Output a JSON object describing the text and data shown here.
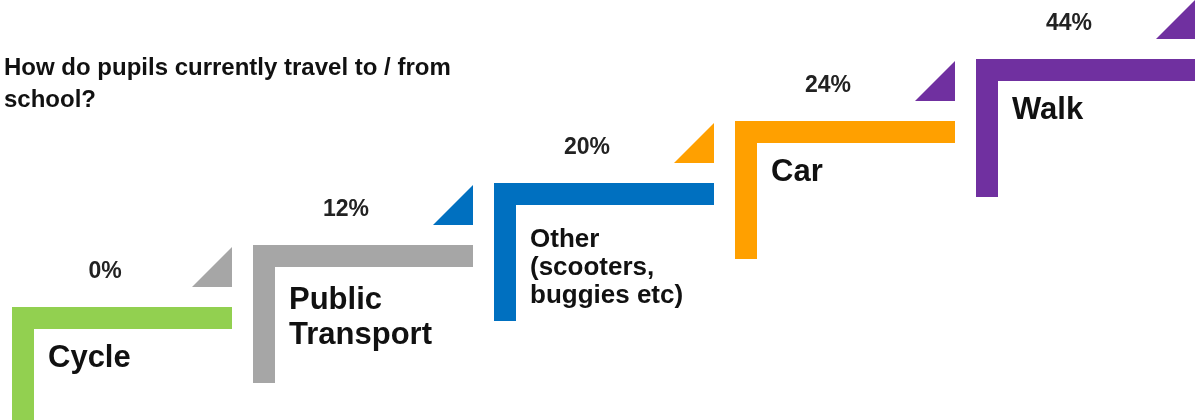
{
  "chart_data": {
    "type": "other",
    "title": "How do pupils currently travel to / from school?",
    "categories": [
      "Cycle",
      "Public Transport",
      "Other (scooters, buggies etc)",
      "Car",
      "Walk"
    ],
    "values": [
      0,
      12,
      20,
      24,
      44
    ],
    "colors": [
      "#92d050",
      "#a6a6a6",
      "#0070c0",
      "#ffa000",
      "#7030a0"
    ],
    "value_labels": [
      "0%",
      "12%",
      "20%",
      "24%",
      "44%"
    ]
  }
}
